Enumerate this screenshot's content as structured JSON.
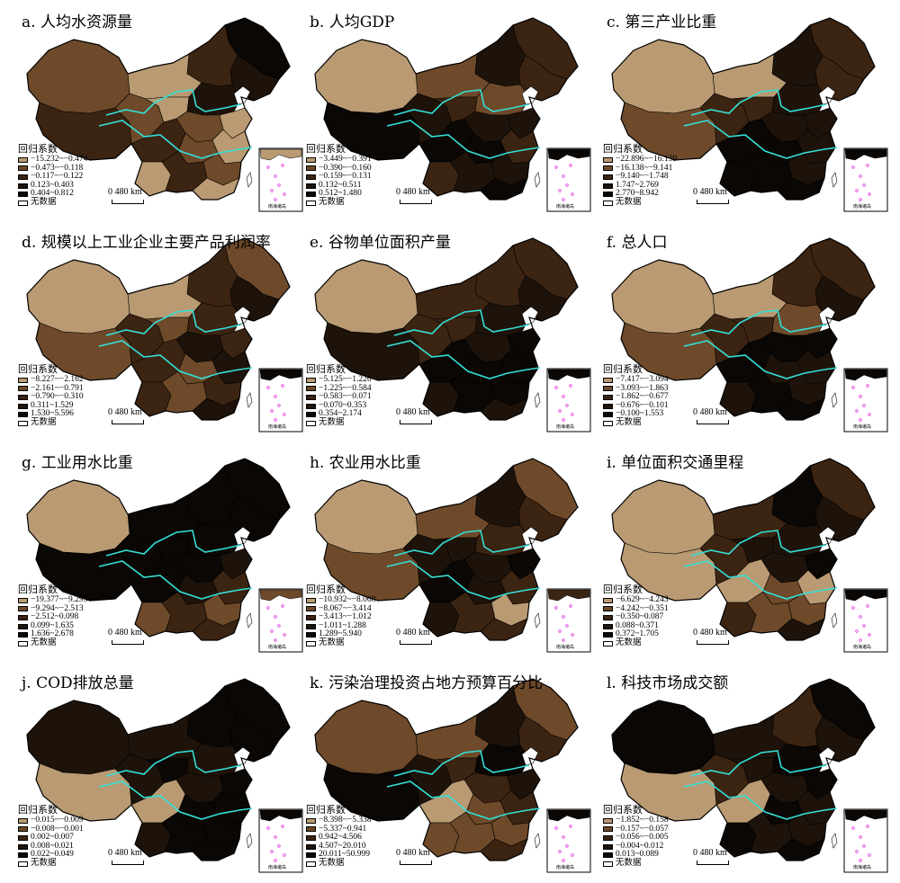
{
  "colors": {
    "c1": "#b99a72",
    "c2": "#6e4a2a",
    "c3": "#3c2412",
    "c4": "#1e130a",
    "c5": "#0a0705",
    "river": "#33e0d8",
    "island": "#e040e0",
    "nodata": "#ffffff"
  },
  "legend_title": "回归系数",
  "nodata_label": "无数据",
  "scale_label": "0    480 km",
  "inset_label": "南海诸岛",
  "panels": [
    {
      "title": "a. 人均水资源量",
      "classes": [
        "−15.232~−0.474",
        "−0.473~−0.118",
        "−0.117~−0.122",
        "0.123~0.403",
        "0.404~0.812"
      ],
      "region_colors": [
        "c5",
        "c4",
        "c3",
        "c1",
        "c2",
        "c3",
        "c2",
        "c1",
        "c4",
        "c3",
        "c2",
        "c1",
        "c2",
        "c1",
        "c1",
        "c3",
        "c2",
        "c1"
      ],
      "inset_color": "c1"
    },
    {
      "title": "b. 人均GDP",
      "classes": [
        "−3.449~−0.391",
        "−0.390~−0.160",
        "−0.159~−0.131",
        "0.132~0.511",
        "0.512~1.480"
      ],
      "region_colors": [
        "c3",
        "c3",
        "c4",
        "c2",
        "c1",
        "c5",
        "c4",
        "c3",
        "c2",
        "c5",
        "c4",
        "c4",
        "c5",
        "c3",
        "c3",
        "c4",
        "c4",
        "c5"
      ],
      "inset_color": "c5"
    },
    {
      "title": "c. 第三产业比重",
      "classes": [
        "−22.896~−16.139",
        "−16.138~−9.141",
        "−9.140~−1.748",
        "1.747~2.769",
        "2.770~8.942"
      ],
      "region_colors": [
        "c3",
        "c3",
        "c4",
        "c1",
        "c1",
        "c2",
        "c3",
        "c3",
        "c4",
        "c5",
        "c4",
        "c4",
        "c5",
        "c4",
        "c5",
        "c5",
        "c4",
        "c5"
      ],
      "inset_color": "c5"
    },
    {
      "title": "d. 规模以上工业企业主要产品利润率",
      "classes": [
        "−8.227~−2.162",
        "−2.161~−0.791",
        "−0.790~−0.310",
        "0.311~1.529",
        "1.530~5.596"
      ],
      "region_colors": [
        "c2",
        "c4",
        "c3",
        "c1",
        "c1",
        "c2",
        "c3",
        "c2",
        "c3",
        "c3",
        "c4",
        "c3",
        "c2",
        "c4",
        "c3",
        "c2",
        "c3",
        "c4"
      ],
      "inset_color": "c5"
    },
    {
      "title": "e. 谷物单位面积产量",
      "classes": [
        "−5.125~−1.226",
        "−1.225~−0.584",
        "−0.583~−0.071",
        "−0.070~0.353",
        "0.354~2.174"
      ],
      "region_colors": [
        "c3",
        "c4",
        "c3",
        "c3",
        "c1",
        "c4",
        "c3",
        "c3",
        "c4",
        "c5",
        "c4",
        "c5",
        "c5",
        "c5",
        "c4",
        "c5",
        "c5",
        "c4"
      ],
      "inset_color": "c5"
    },
    {
      "title": "f. 总人口",
      "classes": [
        "−7.417~−3.094",
        "−3.093~−1.863",
        "−1.862~−0.677",
        "−0.676~−0.101",
        "−0.100~1.553"
      ],
      "region_colors": [
        "c3",
        "c4",
        "c3",
        "c1",
        "c1",
        "c2",
        "c3",
        "c3",
        "c2",
        "c5",
        "c5",
        "c5",
        "c4",
        "c4",
        "c4",
        "c5",
        "c4",
        "c5"
      ],
      "inset_color": "c5"
    },
    {
      "title": "g. 工业用水比重",
      "classes": [
        "−19.377~−9.295",
        "−9.294~−2.513",
        "−2.512~0.098",
        "0.099~1.635",
        "1.636~2.678"
      ],
      "region_colors": [
        "c5",
        "c5",
        "c5",
        "c5",
        "c1",
        "c5",
        "c5",
        "c5",
        "c5",
        "c5",
        "c5",
        "c4",
        "c4",
        "c3",
        "c2",
        "c3",
        "c2",
        "c3"
      ],
      "inset_color": "c2"
    },
    {
      "title": "h. 农业用水比重",
      "classes": [
        "−10.932~−8.068",
        "−8.067~−3.414",
        "−3.413~−1.012",
        "−1.011~1.288",
        "1.289~5.940"
      ],
      "region_colors": [
        "c2",
        "c3",
        "c4",
        "c2",
        "c1",
        "c2",
        "c4",
        "c4",
        "c3",
        "c5",
        "c4",
        "c5",
        "c4",
        "c3",
        "c4",
        "c3",
        "c1",
        "c3"
      ],
      "inset_color": "c3"
    },
    {
      "title": "i. 单位面积交通里程",
      "classes": [
        "−6.629~−4.243",
        "−4.242~−0.351",
        "−0.350~0.087",
        "0.088~0.371",
        "0.372~1.705"
      ],
      "region_colors": [
        "c3",
        "c4",
        "c5",
        "c3",
        "c1",
        "c1",
        "c3",
        "c4",
        "c4",
        "c1",
        "c4",
        "c5",
        "c2",
        "c1",
        "c3",
        "c2",
        "c2",
        "c4"
      ],
      "inset_color": "c5"
    },
    {
      "title": "j. COD排放总量",
      "classes": [
        "−0.015~−0.009",
        "−0.008~−0.001",
        "0.002~0.007",
        "0.008~0.021",
        "0.022~0.049"
      ],
      "region_colors": [
        "c5",
        "c5",
        "c5",
        "c4",
        "c4",
        "c1",
        "c4",
        "c5",
        "c4",
        "c1",
        "c4",
        "c5",
        "c5",
        "c5",
        "c4",
        "c5",
        "c5",
        "c5"
      ],
      "inset_color": "c5"
    },
    {
      "title": "k. 污染治理投资占地方预算百分比",
      "classes": [
        "−8.398~−5.338",
        "−5.337~0.941",
        "0.942~4.506",
        "4.507~20.010",
        "20.011~50.999"
      ],
      "region_colors": [
        "c2",
        "c3",
        "c4",
        "c2",
        "c2",
        "c5",
        "c4",
        "c3",
        "c5",
        "c1",
        "c3",
        "c4",
        "c2",
        "c3",
        "c2",
        "c2",
        "c2",
        "c3"
      ],
      "inset_color": "c5"
    },
    {
      "title": "l. 科技市场成交额",
      "classes": [
        "−1.852~−0.158",
        "−0.157~−0.057",
        "−0.056~−0.005",
        "−0.004~0.012",
        "0.013~0.089"
      ],
      "region_colors": [
        "c5",
        "c4",
        "c3",
        "c4",
        "c5",
        "c1",
        "c3",
        "c4",
        "c5",
        "c1",
        "c4",
        "c5",
        "c5",
        "c4",
        "c5",
        "c4",
        "c4",
        "c5"
      ],
      "inset_color": "c5"
    }
  ]
}
